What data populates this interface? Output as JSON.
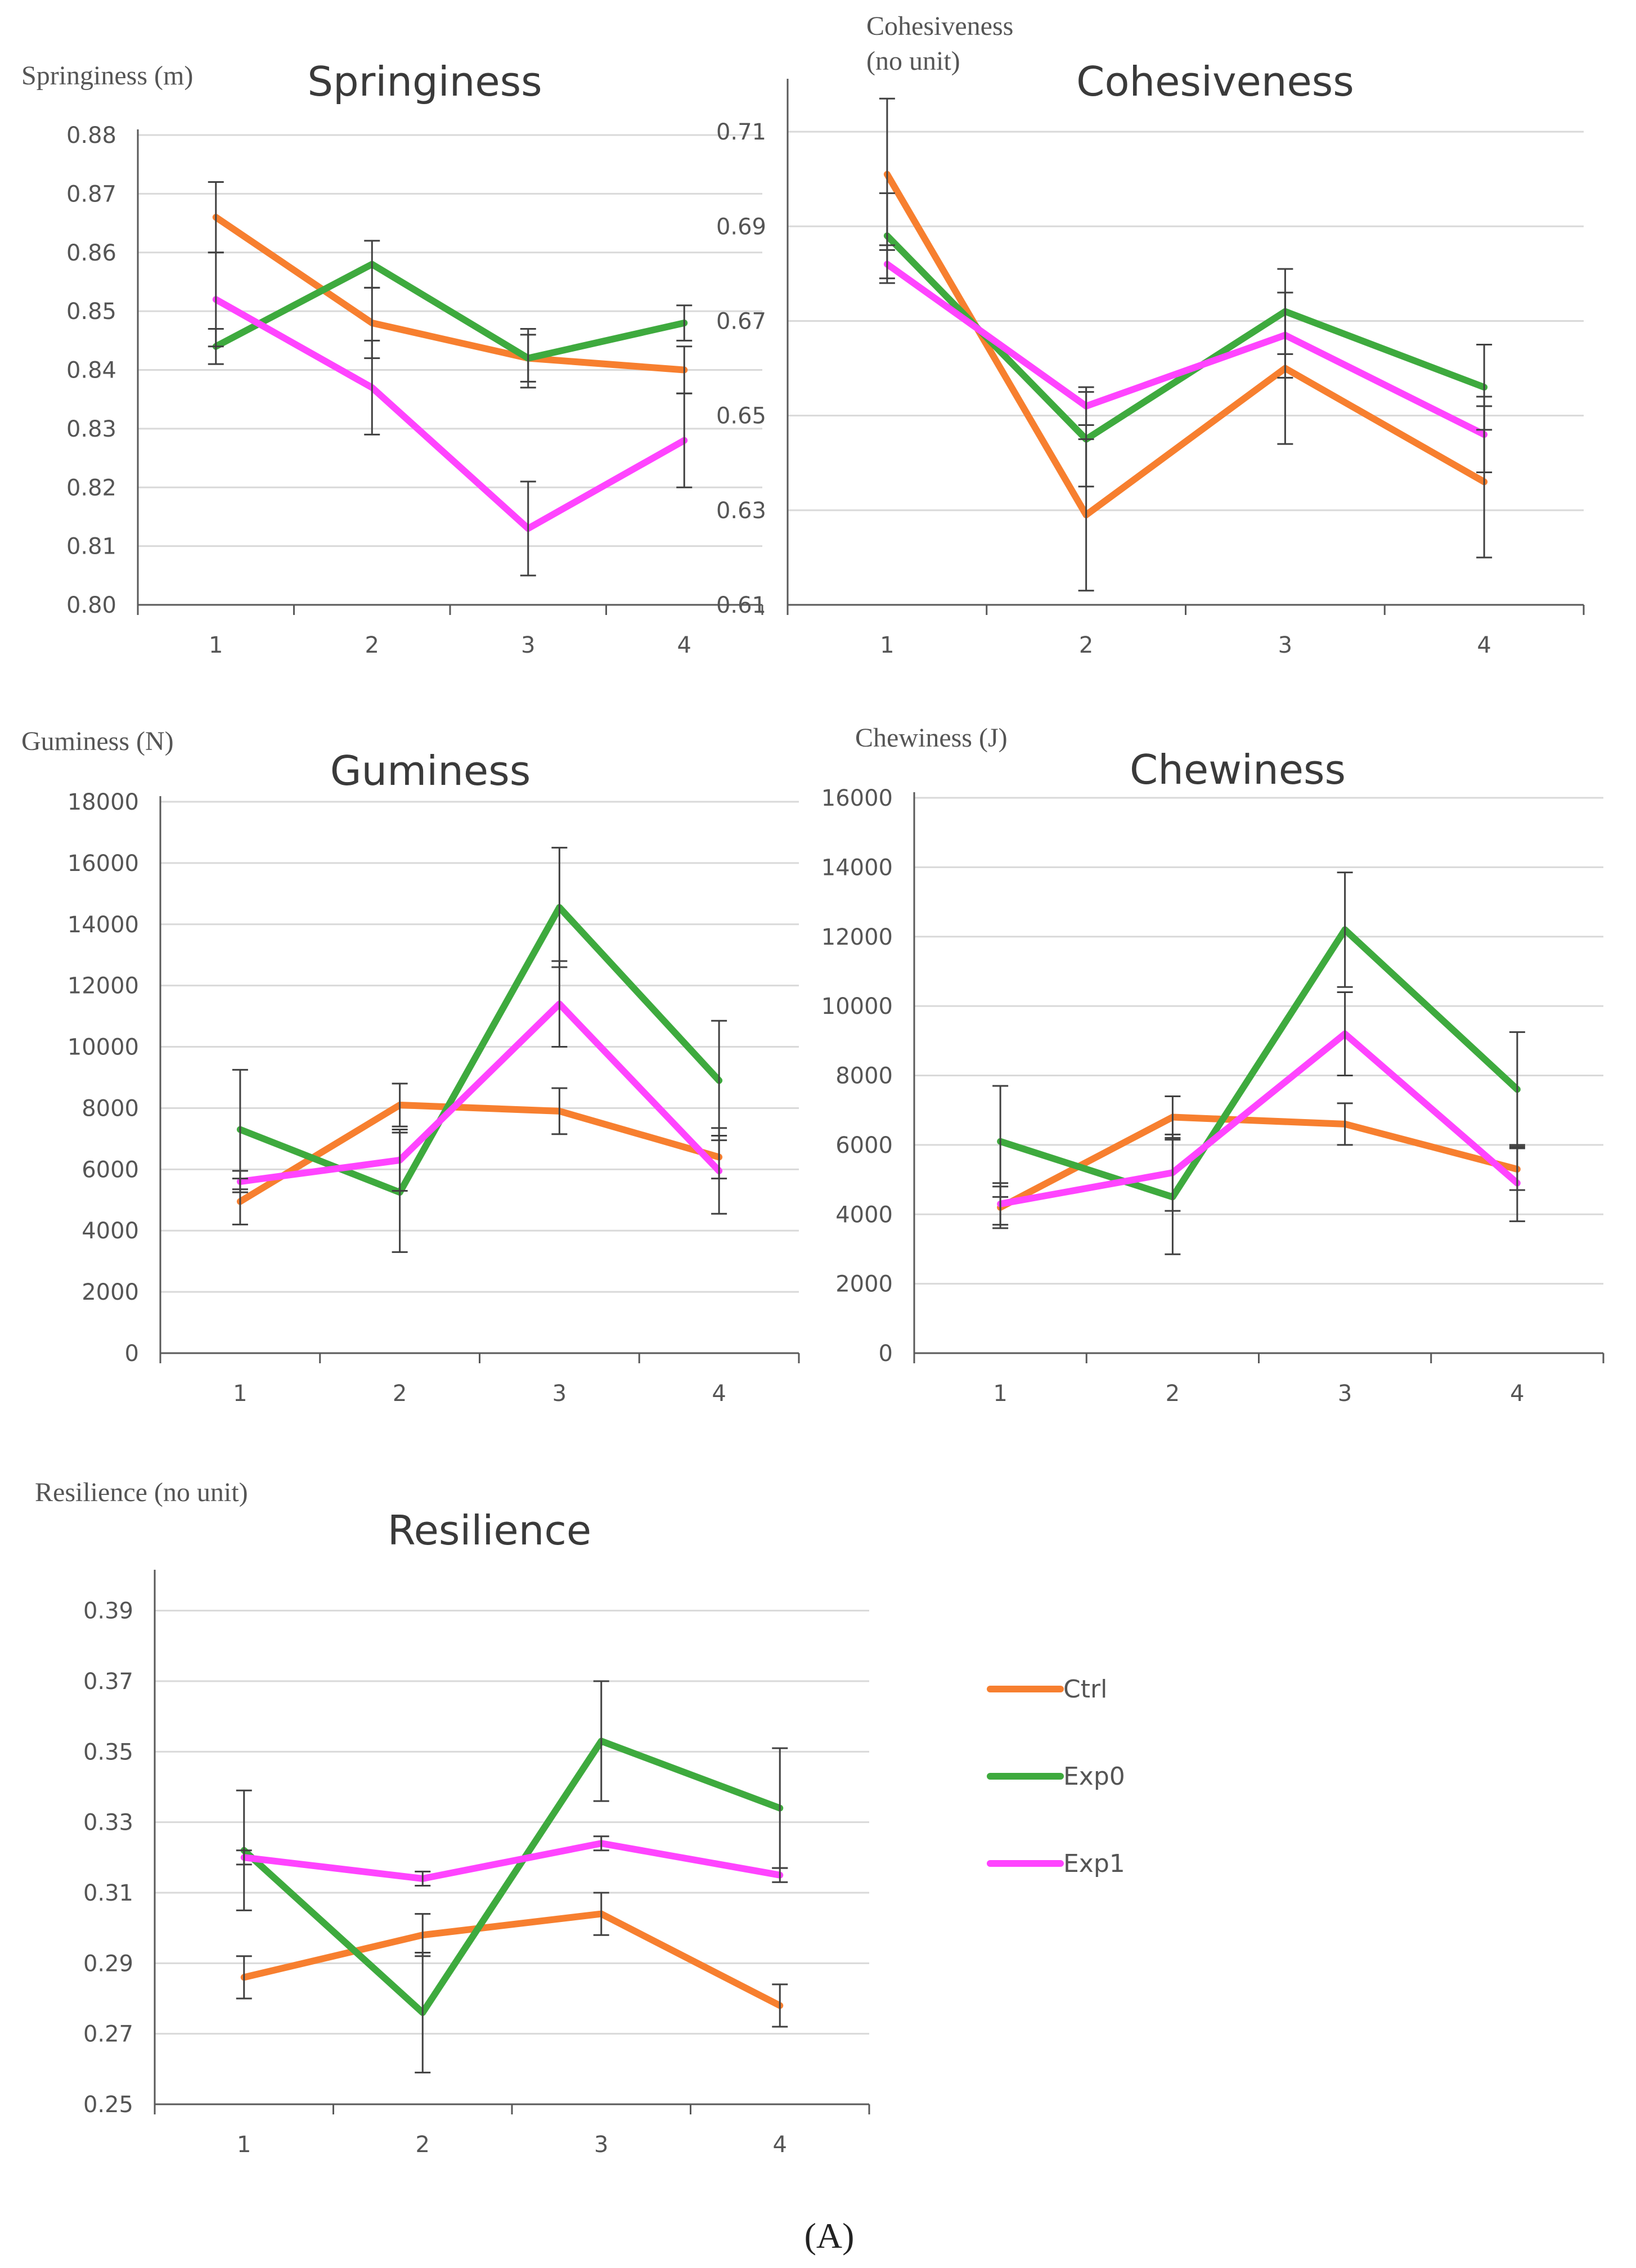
{
  "figure": {
    "caption": "(A)"
  },
  "colors": {
    "Ctrl": "#F77F2F",
    "Exp0": "#3EAA3E",
    "Exp1": "#FF44FF"
  },
  "legend": {
    "entries": [
      "Ctrl",
      "Exp0",
      "Exp1"
    ]
  },
  "chart_data": [
    {
      "type": "line",
      "title": "Springiness",
      "ylabel": "Springiness (m)",
      "categories": [
        "1",
        "2",
        "3",
        "4"
      ],
      "ylim": [
        0.8,
        0.88
      ],
      "yticks": [
        "0.80",
        "0.81",
        "0.82",
        "0.83",
        "0.84",
        "0.85",
        "0.86",
        "0.87",
        "0.88"
      ],
      "series": [
        {
          "name": "Ctrl",
          "values": [
            0.866,
            0.848,
            0.842,
            0.84
          ],
          "errors": [
            0.006,
            0.006,
            0.004,
            0.004
          ]
        },
        {
          "name": "Exp0",
          "values": [
            0.844,
            0.858,
            0.842,
            0.848
          ],
          "errors": [
            0.003,
            0.004,
            0.005,
            0.003
          ]
        },
        {
          "name": "Exp1",
          "values": [
            0.852,
            0.837,
            0.813,
            0.828
          ],
          "errors": [
            0.008,
            0.008,
            0.008,
            0.008
          ]
        }
      ]
    },
    {
      "type": "line",
      "title": "Cohesiveness",
      "ylabel": "Cohesiveness (no unit)",
      "categories": [
        "1",
        "2",
        "3",
        "4"
      ],
      "ylim": [
        0.61,
        0.72
      ],
      "yticks": [
        "0.61",
        "0.63",
        "0.65",
        "0.67",
        "0.69",
        "0.71"
      ],
      "series": [
        {
          "name": "Ctrl",
          "values": [
            0.701,
            0.629,
            0.66,
            0.636
          ],
          "errors": [
            0.016,
            0.016,
            0.016,
            0.016
          ]
        },
        {
          "name": "Exp0",
          "values": [
            0.688,
            0.645,
            0.672,
            0.656
          ],
          "errors": [
            0.009,
            0.01,
            0.009,
            0.009
          ]
        },
        {
          "name": "Exp1",
          "values": [
            0.682,
            0.652,
            0.667,
            0.646
          ],
          "errors": [
            0.004,
            0.004,
            0.009,
            0.008
          ]
        }
      ]
    },
    {
      "type": "line",
      "title": "Guminess",
      "ylabel": "Guminess (N)",
      "categories": [
        "1",
        "2",
        "3",
        "4"
      ],
      "ylim": [
        0,
        18000
      ],
      "yticks": [
        "0",
        "2000",
        "4000",
        "6000",
        "8000",
        "10000",
        "12000",
        "14000",
        "16000",
        "18000"
      ],
      "series": [
        {
          "name": "Ctrl",
          "values": [
            4950,
            8100,
            7900,
            6400
          ],
          "errors": [
            750,
            700,
            750,
            700
          ]
        },
        {
          "name": "Exp0",
          "values": [
            7300,
            5250,
            14550,
            8900
          ],
          "errors": [
            1950,
            1950,
            1950,
            1950
          ]
        },
        {
          "name": "Exp1",
          "values": [
            5600,
            6300,
            11400,
            5950
          ],
          "errors": [
            350,
            1000,
            1400,
            1400
          ]
        }
      ]
    },
    {
      "type": "line",
      "title": "Chewiness",
      "ylabel": "Chewiness (J)",
      "categories": [
        "1",
        "2",
        "3",
        "4"
      ],
      "ylim": [
        0,
        16000
      ],
      "yticks": [
        "0",
        "2000",
        "4000",
        "6000",
        "8000",
        "10000",
        "12000",
        "14000",
        "16000"
      ],
      "series": [
        {
          "name": "Ctrl",
          "values": [
            4200,
            6800,
            6600,
            5300
          ],
          "errors": [
            600,
            600,
            600,
            600
          ]
        },
        {
          "name": "Exp0",
          "values": [
            6100,
            4500,
            12200,
            7600
          ],
          "errors": [
            1600,
            1650,
            1650,
            1650
          ]
        },
        {
          "name": "Exp1",
          "values": [
            4300,
            5200,
            9200,
            4900
          ],
          "errors": [
            600,
            1100,
            1200,
            1100
          ]
        }
      ]
    },
    {
      "type": "line",
      "title": "Resilience",
      "ylabel": "Resilience (no unit)",
      "categories": [
        "1",
        "2",
        "3",
        "4"
      ],
      "ylim": [
        0.25,
        0.4
      ],
      "yticks": [
        "0.25",
        "0.27",
        "0.29",
        "0.31",
        "0.33",
        "0.35",
        "0.37",
        "0.39"
      ],
      "series": [
        {
          "name": "Ctrl",
          "values": [
            0.286,
            0.298,
            0.304,
            0.278
          ],
          "errors": [
            0.006,
            0.006,
            0.006,
            0.006
          ]
        },
        {
          "name": "Exp0",
          "values": [
            0.322,
            0.276,
            0.353,
            0.334
          ],
          "errors": [
            0.017,
            0.017,
            0.017,
            0.017
          ]
        },
        {
          "name": "Exp1",
          "values": [
            0.32,
            0.314,
            0.324,
            0.315
          ],
          "errors": [
            0.002,
            0.002,
            0.002,
            0.002
          ]
        }
      ]
    }
  ]
}
